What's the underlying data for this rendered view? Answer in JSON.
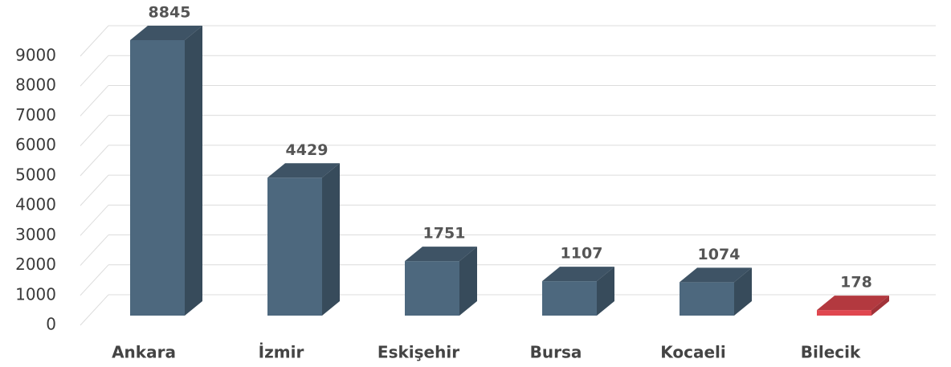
{
  "chart_data": {
    "type": "bar3d",
    "categories": [
      "Ankara",
      "İzmir",
      "Eskişehir",
      "Bursa",
      "Kocaeli",
      "Bilecik"
    ],
    "values": [
      8845,
      4429,
      1751,
      1107,
      1074,
      178
    ],
    "colors": [
      "#4d687e",
      "#4d687e",
      "#4d687e",
      "#4d687e",
      "#4d687e",
      "#e0474f"
    ],
    "ylim": [
      0,
      9000
    ],
    "yticks": [
      0,
      1000,
      2000,
      3000,
      4000,
      5000,
      6000,
      7000,
      8000,
      9000
    ],
    "grid": true
  }
}
